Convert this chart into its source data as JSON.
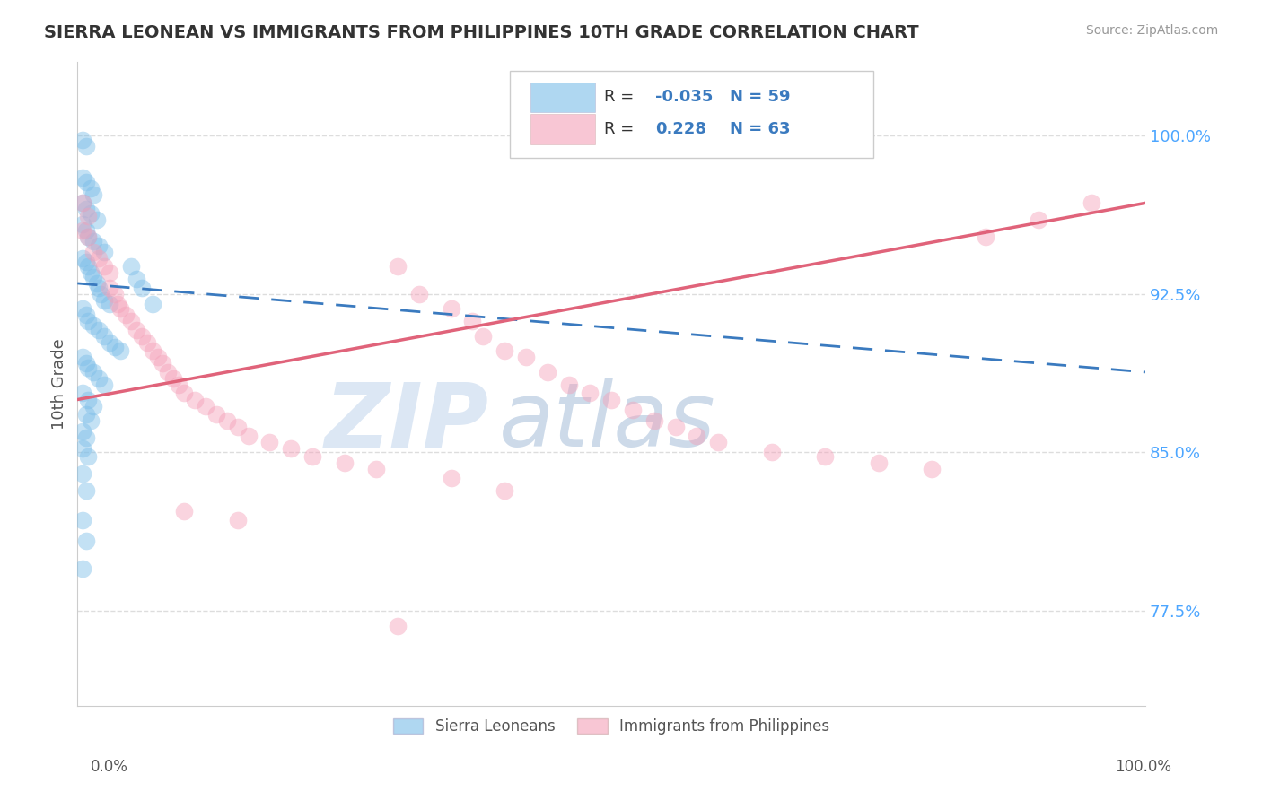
{
  "title": "SIERRA LEONEAN VS IMMIGRANTS FROM PHILIPPINES 10TH GRADE CORRELATION CHART",
  "source": "Source: ZipAtlas.com",
  "ylabel": "10th Grade",
  "ytick_labels": [
    "77.5%",
    "85.0%",
    "92.5%",
    "100.0%"
  ],
  "ytick_values": [
    0.775,
    0.85,
    0.925,
    1.0
  ],
  "xlim": [
    0.0,
    1.0
  ],
  "ylim": [
    0.73,
    1.035
  ],
  "legend_blue_r": "-0.035",
  "legend_blue_n": "59",
  "legend_pink_r": "0.228",
  "legend_pink_n": "63",
  "legend_label_blue": "Sierra Leoneans",
  "legend_label_pink": "Immigrants from Philippines",
  "blue_color": "#7bbde8",
  "pink_color": "#f4a0b8",
  "blue_line_color": "#3a7abf",
  "pink_line_color": "#e0637a",
  "blue_scatter": [
    [
      0.005,
      0.998
    ],
    [
      0.008,
      0.995
    ],
    [
      0.005,
      0.98
    ],
    [
      0.008,
      0.978
    ],
    [
      0.012,
      0.975
    ],
    [
      0.015,
      0.972
    ],
    [
      0.005,
      0.968
    ],
    [
      0.008,
      0.965
    ],
    [
      0.012,
      0.963
    ],
    [
      0.018,
      0.96
    ],
    [
      0.005,
      0.958
    ],
    [
      0.008,
      0.955
    ],
    [
      0.01,
      0.952
    ],
    [
      0.015,
      0.95
    ],
    [
      0.02,
      0.948
    ],
    [
      0.025,
      0.945
    ],
    [
      0.005,
      0.942
    ],
    [
      0.008,
      0.94
    ],
    [
      0.01,
      0.938
    ],
    [
      0.012,
      0.935
    ],
    [
      0.015,
      0.933
    ],
    [
      0.018,
      0.93
    ],
    [
      0.02,
      0.928
    ],
    [
      0.022,
      0.925
    ],
    [
      0.025,
      0.922
    ],
    [
      0.03,
      0.92
    ],
    [
      0.005,
      0.918
    ],
    [
      0.008,
      0.915
    ],
    [
      0.01,
      0.912
    ],
    [
      0.015,
      0.91
    ],
    [
      0.02,
      0.908
    ],
    [
      0.025,
      0.905
    ],
    [
      0.03,
      0.902
    ],
    [
      0.035,
      0.9
    ],
    [
      0.04,
      0.898
    ],
    [
      0.005,
      0.895
    ],
    [
      0.008,
      0.892
    ],
    [
      0.01,
      0.89
    ],
    [
      0.015,
      0.888
    ],
    [
      0.02,
      0.885
    ],
    [
      0.025,
      0.882
    ],
    [
      0.005,
      0.878
    ],
    [
      0.01,
      0.875
    ],
    [
      0.015,
      0.872
    ],
    [
      0.008,
      0.868
    ],
    [
      0.012,
      0.865
    ],
    [
      0.005,
      0.86
    ],
    [
      0.008,
      0.857
    ],
    [
      0.005,
      0.852
    ],
    [
      0.01,
      0.848
    ],
    [
      0.005,
      0.84
    ],
    [
      0.008,
      0.832
    ],
    [
      0.005,
      0.818
    ],
    [
      0.008,
      0.808
    ],
    [
      0.005,
      0.795
    ],
    [
      0.05,
      0.938
    ],
    [
      0.055,
      0.932
    ],
    [
      0.06,
      0.928
    ],
    [
      0.07,
      0.92
    ]
  ],
  "pink_scatter": [
    [
      0.005,
      0.968
    ],
    [
      0.01,
      0.962
    ],
    [
      0.005,
      0.955
    ],
    [
      0.01,
      0.952
    ],
    [
      0.015,
      0.945
    ],
    [
      0.02,
      0.942
    ],
    [
      0.025,
      0.938
    ],
    [
      0.03,
      0.935
    ],
    [
      0.03,
      0.928
    ],
    [
      0.035,
      0.925
    ],
    [
      0.038,
      0.92
    ],
    [
      0.04,
      0.918
    ],
    [
      0.045,
      0.915
    ],
    [
      0.05,
      0.912
    ],
    [
      0.055,
      0.908
    ],
    [
      0.06,
      0.905
    ],
    [
      0.065,
      0.902
    ],
    [
      0.07,
      0.898
    ],
    [
      0.075,
      0.895
    ],
    [
      0.08,
      0.892
    ],
    [
      0.085,
      0.888
    ],
    [
      0.09,
      0.885
    ],
    [
      0.095,
      0.882
    ],
    [
      0.1,
      0.878
    ],
    [
      0.11,
      0.875
    ],
    [
      0.12,
      0.872
    ],
    [
      0.13,
      0.868
    ],
    [
      0.14,
      0.865
    ],
    [
      0.15,
      0.862
    ],
    [
      0.16,
      0.858
    ],
    [
      0.18,
      0.855
    ],
    [
      0.2,
      0.852
    ],
    [
      0.22,
      0.848
    ],
    [
      0.25,
      0.845
    ],
    [
      0.28,
      0.842
    ],
    [
      0.3,
      0.938
    ],
    [
      0.32,
      0.925
    ],
    [
      0.35,
      0.918
    ],
    [
      0.37,
      0.912
    ],
    [
      0.38,
      0.905
    ],
    [
      0.4,
      0.898
    ],
    [
      0.42,
      0.895
    ],
    [
      0.44,
      0.888
    ],
    [
      0.46,
      0.882
    ],
    [
      0.48,
      0.878
    ],
    [
      0.5,
      0.875
    ],
    [
      0.52,
      0.87
    ],
    [
      0.54,
      0.865
    ],
    [
      0.56,
      0.862
    ],
    [
      0.58,
      0.858
    ],
    [
      0.6,
      0.855
    ],
    [
      0.65,
      0.85
    ],
    [
      0.7,
      0.848
    ],
    [
      0.75,
      0.845
    ],
    [
      0.8,
      0.842
    ],
    [
      0.35,
      0.838
    ],
    [
      0.4,
      0.832
    ],
    [
      0.1,
      0.822
    ],
    [
      0.15,
      0.818
    ],
    [
      0.3,
      0.768
    ],
    [
      0.85,
      0.952
    ],
    [
      0.9,
      0.96
    ],
    [
      0.95,
      0.968
    ]
  ],
  "background_color": "#ffffff",
  "grid_color": "#dddddd",
  "title_color": "#333333",
  "axis_label_color": "#555555",
  "right_label_color": "#4da6ff",
  "source_color": "#999999",
  "watermark_zip_color": "#c8d8f0",
  "watermark_atlas_color": "#a0b8d8"
}
